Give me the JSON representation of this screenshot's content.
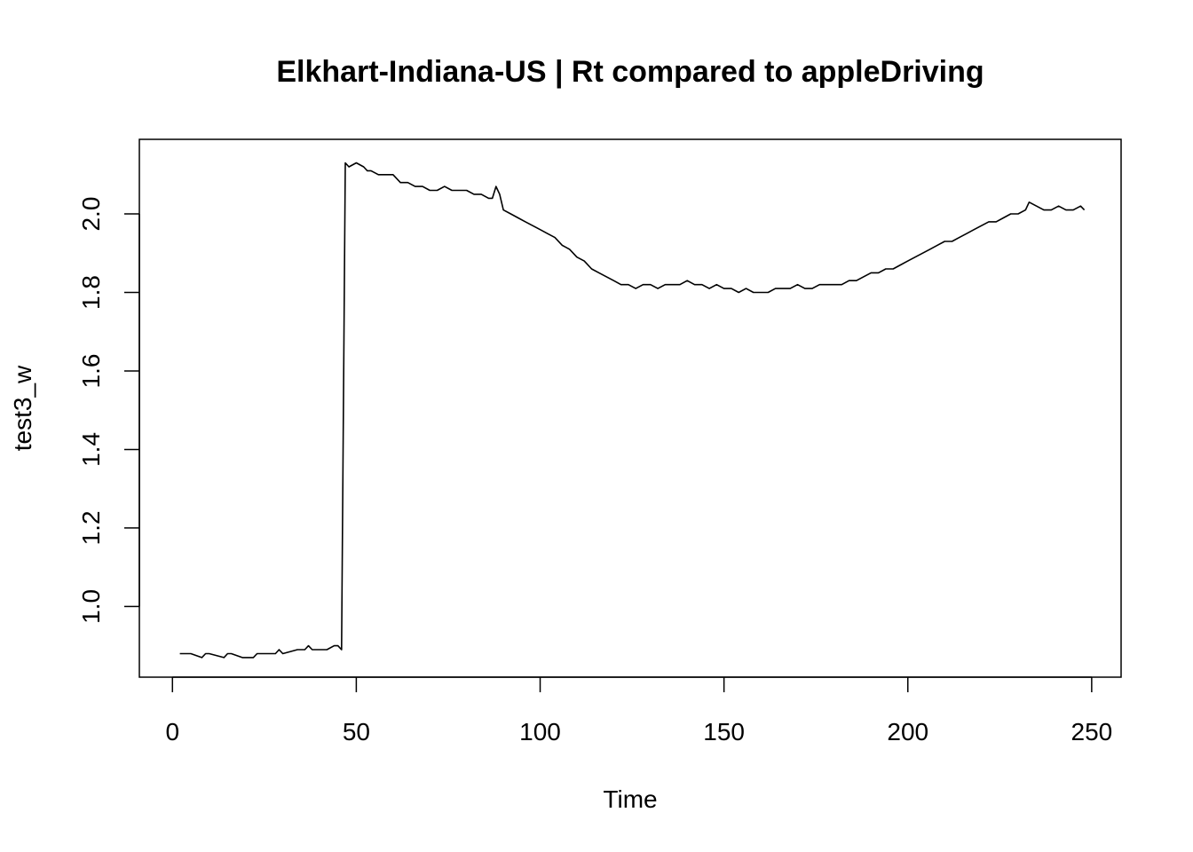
{
  "chart_data": {
    "type": "line",
    "title": "Elkhart-Indiana-US | Rt compared to appleDriving",
    "xlabel": "Time",
    "ylabel": "test3_w",
    "xlim": [
      -9,
      258
    ],
    "ylim": [
      0.82,
      2.19
    ],
    "x_ticks": [
      0,
      50,
      100,
      150,
      200,
      250
    ],
    "y_ticks": [
      1.0,
      1.2,
      1.4,
      1.6,
      1.8,
      2.0
    ],
    "x_tick_labels": [
      "0",
      "50",
      "100",
      "150",
      "200",
      "250"
    ],
    "y_tick_labels": [
      "1.0",
      "1.2",
      "1.4",
      "1.6",
      "1.8",
      "2.0"
    ],
    "grid": false,
    "series": [
      {
        "x": [
          2,
          5,
          8,
          9,
          10,
          14,
          15,
          16,
          19,
          22,
          23,
          24,
          28,
          29,
          30,
          34,
          36,
          37,
          38,
          42,
          44,
          45,
          46,
          47,
          48,
          50,
          52,
          53,
          54,
          56,
          58,
          60,
          62,
          64,
          66,
          68,
          70,
          72,
          74,
          76,
          78,
          80,
          82,
          84,
          86,
          87,
          88,
          89,
          90,
          92,
          94,
          96,
          98,
          100,
          102,
          104,
          106,
          108,
          110,
          112,
          114,
          116,
          118,
          120,
          122,
          124,
          126,
          128,
          130,
          132,
          134,
          136,
          138,
          140,
          142,
          144,
          146,
          148,
          150,
          152,
          154,
          156,
          158,
          160,
          162,
          164,
          166,
          168,
          170,
          172,
          174,
          176,
          178,
          180,
          182,
          184,
          186,
          188,
          190,
          192,
          194,
          196,
          198,
          200,
          202,
          204,
          206,
          208,
          210,
          212,
          214,
          216,
          218,
          220,
          222,
          224,
          226,
          228,
          230,
          232,
          233,
          235,
          237,
          239,
          241,
          243,
          245,
          247,
          248
        ],
        "values": [
          0.88,
          0.88,
          0.87,
          0.88,
          0.88,
          0.87,
          0.88,
          0.88,
          0.87,
          0.87,
          0.88,
          0.88,
          0.88,
          0.89,
          0.88,
          0.89,
          0.89,
          0.9,
          0.89,
          0.89,
          0.9,
          0.9,
          0.89,
          2.13,
          2.12,
          2.13,
          2.12,
          2.11,
          2.11,
          2.1,
          2.1,
          2.1,
          2.08,
          2.08,
          2.07,
          2.07,
          2.06,
          2.06,
          2.07,
          2.06,
          2.06,
          2.06,
          2.05,
          2.05,
          2.04,
          2.04,
          2.07,
          2.05,
          2.01,
          2.0,
          1.99,
          1.98,
          1.97,
          1.96,
          1.95,
          1.94,
          1.92,
          1.91,
          1.89,
          1.88,
          1.86,
          1.85,
          1.84,
          1.83,
          1.82,
          1.82,
          1.81,
          1.82,
          1.82,
          1.81,
          1.82,
          1.82,
          1.82,
          1.83,
          1.82,
          1.82,
          1.81,
          1.82,
          1.81,
          1.81,
          1.8,
          1.81,
          1.8,
          1.8,
          1.8,
          1.81,
          1.81,
          1.81,
          1.82,
          1.81,
          1.81,
          1.82,
          1.82,
          1.82,
          1.82,
          1.83,
          1.83,
          1.84,
          1.85,
          1.85,
          1.86,
          1.86,
          1.87,
          1.88,
          1.89,
          1.9,
          1.91,
          1.92,
          1.93,
          1.93,
          1.94,
          1.95,
          1.96,
          1.97,
          1.98,
          1.98,
          1.99,
          2.0,
          2.0,
          2.01,
          2.03,
          2.02,
          2.01,
          2.01,
          2.02,
          2.01,
          2.01,
          2.02,
          2.01
        ]
      }
    ]
  }
}
